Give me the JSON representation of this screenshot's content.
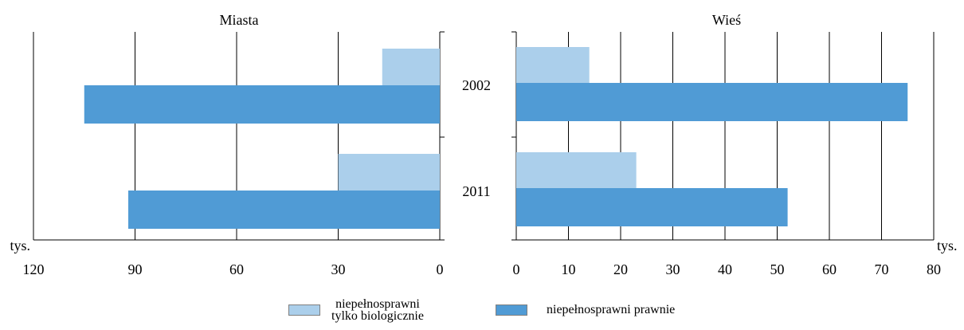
{
  "colors": {
    "light": "#abcfeb",
    "dark": "#509bd5",
    "grid": "#000000"
  },
  "chart_data": [
    {
      "type": "bar",
      "orientation": "horizontal",
      "title": "Miasta",
      "unit_label": "tys.",
      "x_direction": "reversed",
      "xlim": [
        0,
        120
      ],
      "xticks": [
        120,
        90,
        60,
        30,
        0
      ],
      "categories": [
        "2002",
        "2011"
      ],
      "series": [
        {
          "name": "niepełnosprawni tylko biologicznie",
          "color": "#abcfeb",
          "values": [
            17,
            30
          ]
        },
        {
          "name": "niepełnosprawni prawnie",
          "color": "#509bd5",
          "values": [
            105,
            92
          ]
        }
      ],
      "grid": true
    },
    {
      "type": "bar",
      "orientation": "horizontal",
      "title": "Wieś",
      "unit_label": "tys.",
      "xlim": [
        0,
        80
      ],
      "xticks": [
        0,
        10,
        20,
        30,
        40,
        50,
        60,
        70,
        80
      ],
      "categories": [
        "2002",
        "2011"
      ],
      "series": [
        {
          "name": "niepełnosprawni tylko biologicznie",
          "color": "#abcfeb",
          "values": [
            14,
            23
          ]
        },
        {
          "name": "niepełnosprawni prawnie",
          "color": "#509bd5",
          "values": [
            75,
            52
          ]
        }
      ],
      "grid": true
    }
  ],
  "legend": {
    "items": [
      {
        "label_lines": [
          "niepełnosprawni",
          "tylko biologicznie"
        ],
        "color": "#abcfeb"
      },
      {
        "label_lines": [
          "niepełnosprawni prawnie"
        ],
        "color": "#509bd5"
      }
    ]
  }
}
